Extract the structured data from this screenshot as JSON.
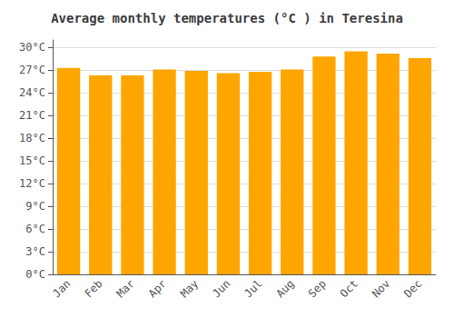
{
  "chart_data": {
    "type": "bar",
    "title": "Average monthly temperatures (°C ) in Teresina",
    "categories": [
      "Jan",
      "Feb",
      "Mar",
      "Apr",
      "May",
      "Jun",
      "Jul",
      "Aug",
      "Sep",
      "Oct",
      "Nov",
      "Dec"
    ],
    "values": [
      27.3,
      26.3,
      26.3,
      27.1,
      26.9,
      26.6,
      26.8,
      27.1,
      28.8,
      29.5,
      29.2,
      28.6
    ],
    "color": "#FFA500",
    "ylim": [
      0,
      31
    ],
    "yticks": [
      {
        "value": 0,
        "label": "0°C"
      },
      {
        "value": 3,
        "label": "3°C"
      },
      {
        "value": 6,
        "label": "6°C"
      },
      {
        "value": 9,
        "label": "9°C"
      },
      {
        "value": 12,
        "label": "12°C"
      },
      {
        "value": 15,
        "label": "15°C"
      },
      {
        "value": 18,
        "label": "18°C"
      },
      {
        "value": 21,
        "label": "21°C"
      },
      {
        "value": 24,
        "label": "24°C"
      },
      {
        "value": 27,
        "label": "27°C"
      },
      {
        "value": 30,
        "label": "30°C"
      }
    ],
    "grid": true
  }
}
